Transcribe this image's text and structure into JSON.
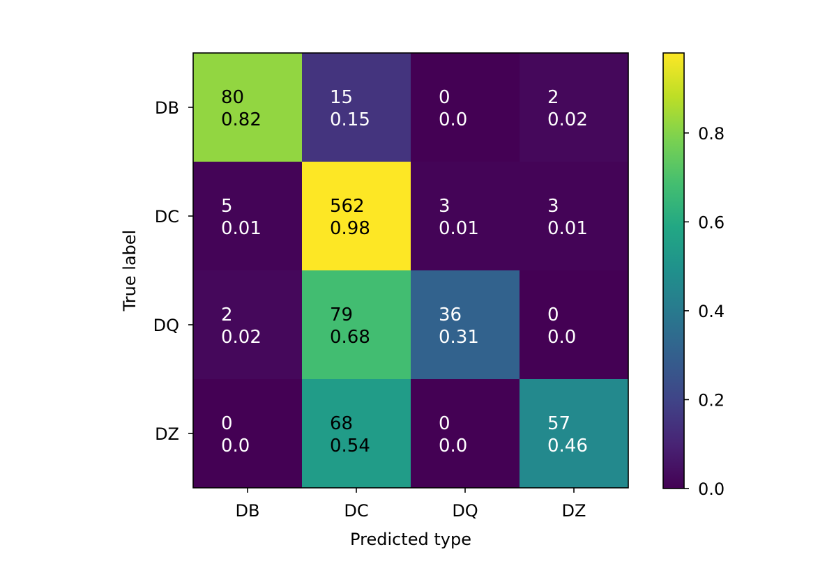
{
  "chart_data": {
    "type": "heatmap",
    "title": "",
    "xlabel": "Predicted type",
    "ylabel": "True label",
    "x_categories": [
      "DB",
      "DC",
      "DQ",
      "DZ"
    ],
    "y_categories": [
      "DB",
      "DC",
      "DQ",
      "DZ"
    ],
    "counts": [
      [
        80,
        15,
        0,
        2
      ],
      [
        5,
        562,
        3,
        3
      ],
      [
        2,
        79,
        36,
        0
      ],
      [
        0,
        68,
        0,
        57
      ]
    ],
    "normalized": [
      [
        "0.82",
        "0.15",
        "0.0",
        "0.02"
      ],
      [
        "0.01",
        "0.98",
        "0.01",
        "0.01"
      ],
      [
        "0.02",
        "0.68",
        "0.31",
        "0.0"
      ],
      [
        "0.0",
        "0.54",
        "0.0",
        "0.46"
      ]
    ],
    "colormap": "viridis",
    "colorbar": {
      "range": [
        0.0,
        0.98
      ],
      "ticks": [
        0.0,
        0.2,
        0.4,
        0.6,
        0.8
      ],
      "tick_labels": [
        "0.0",
        "0.2",
        "0.4",
        "0.6",
        "0.8"
      ]
    },
    "colors": {
      "text_dark": "#000000",
      "text_light": "#ffffff",
      "frame": "#000000"
    }
  }
}
